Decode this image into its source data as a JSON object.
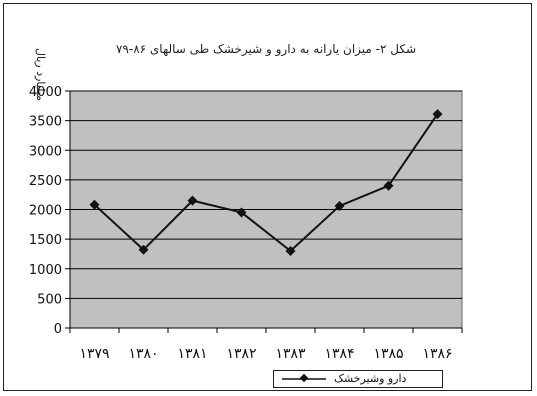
{
  "chart_data": {
    "type": "line",
    "title": "شکل ۲- میزان یارانه به دارو و شیرخشک طی سالهای ۸۶-۷۹",
    "ylabel": "میلیارد ریال",
    "xlabel": "",
    "categories": [
      "۱۳۷۹",
      "۱۳۸۰",
      "۱۳۸۱",
      "۱۳۸۲",
      "۱۳۸۳",
      "۱۳۸۴",
      "۱۳۸۵",
      "۱۳۸۶"
    ],
    "series": [
      {
        "name": "دارو وشیرخشک",
        "values": [
          2080,
          1320,
          2150,
          1950,
          1300,
          2060,
          2400,
          3610
        ]
      }
    ],
    "ylim": [
      0,
      4000
    ],
    "yticks": [
      0,
      500,
      1000,
      1500,
      2000,
      2500,
      3000,
      3500,
      4000
    ],
    "grid": true,
    "legend": "bottom-right",
    "colors": {
      "plot_bg": "#c0c0c0",
      "line": "#111111",
      "grid": "#000000"
    }
  }
}
